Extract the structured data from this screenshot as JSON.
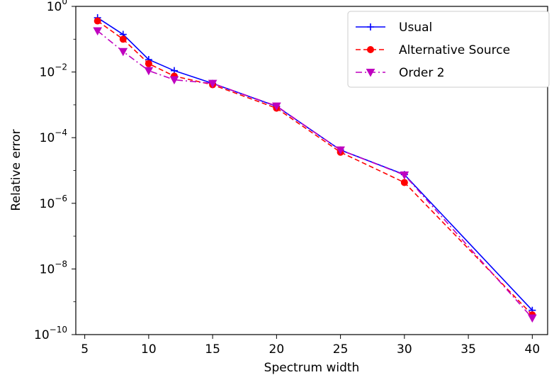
{
  "chart_data": {
    "type": "line",
    "xlabel": "Spectrum width",
    "ylabel": "Relative error",
    "yscale": "log",
    "xlim": [
      4.3,
      41.2
    ],
    "ylim_exponents": [
      -10,
      0
    ],
    "xticks": [
      5,
      10,
      15,
      20,
      25,
      30,
      35,
      40
    ],
    "yticks": [
      {
        "base": "10",
        "exp": "0",
        "value": 1
      },
      {
        "base": "10",
        "exp": "−2",
        "value": 0.01
      },
      {
        "base": "10",
        "exp": "−4",
        "value": 0.0001
      },
      {
        "base": "10",
        "exp": "−6",
        "value": 1e-06
      },
      {
        "base": "10",
        "exp": "−8",
        "value": 1e-08
      },
      {
        "base": "10",
        "exp": "−10",
        "value": 1e-10
      }
    ],
    "grid": false,
    "legend_position": "top-right",
    "series": [
      {
        "name": "Usual",
        "color": "#0000ff",
        "linestyle": "solid",
        "marker": "plus",
        "x": [
          6,
          8,
          10,
          12,
          15,
          20,
          25,
          30,
          40
        ],
        "y": [
          0.45,
          0.14,
          0.024,
          0.011,
          0.0045,
          0.0009,
          4.2e-05,
          7.5e-06,
          5.5e-10
        ]
      },
      {
        "name": "Alternative Source",
        "color": "#ff0000",
        "linestyle": "dashed",
        "marker": "circle",
        "x": [
          6,
          8,
          10,
          12,
          15,
          20,
          25,
          30,
          40
        ],
        "y": [
          0.36,
          0.1,
          0.018,
          0.0075,
          0.0041,
          0.00079,
          3.6e-05,
          4.3e-06,
          4e-10
        ]
      },
      {
        "name": "Order 2",
        "color": "#bf00bf",
        "linestyle": "dashdot",
        "marker": "triangle-down",
        "x": [
          6,
          8,
          10,
          12,
          15,
          20,
          25,
          30,
          40
        ],
        "y": [
          0.18,
          0.042,
          0.011,
          0.0058,
          0.0045,
          0.00092,
          4.2e-05,
          7.3e-06,
          3.2e-10
        ]
      }
    ]
  }
}
